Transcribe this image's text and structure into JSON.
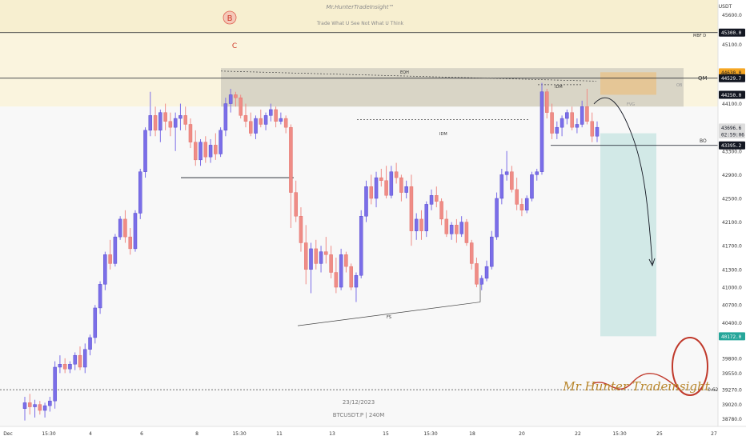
{
  "chart_data": {
    "type": "candlestick",
    "currency": "USDT",
    "watermark_title": "Mr.HunterTradeInsight™",
    "watermark_tagline": "Trade What U See Not What U Think",
    "footer_date": "23/12/2023",
    "footer_symbol": "BTCUSDT.P | 240M",
    "signature": "Mr Hunter Tradeinsight",
    "x_tick_labels": [
      "Dec",
      "15:30",
      "4",
      "6",
      "8",
      "15:30",
      "11",
      "13",
      "15",
      "15:30",
      "18",
      "20",
      "22",
      "15:30",
      "25",
      "27"
    ],
    "y_tick_labels": [
      "45600.0",
      "45100.0",
      "44100.0",
      "43300.0",
      "42900.0",
      "42500.0",
      "42100.0",
      "41700.0",
      "41300.0",
      "41000.0",
      "40700.0",
      "40400.0",
      "39800.0",
      "39550.0",
      "39270.0",
      "39020.0",
      "38780.0"
    ],
    "ylim": [
      38650,
      45850
    ],
    "price_tags": [
      {
        "label": "45300.0",
        "value": 45300,
        "color": "#131722",
        "text_color": "#ffffff"
      },
      {
        "label": "44630.0",
        "value": 44630,
        "color": "#f5a623",
        "text_color": "#131722"
      },
      {
        "label": "44529.7",
        "value": 44529.7,
        "color": "#131722",
        "text_color": "#ffffff"
      },
      {
        "label": "44250.0",
        "value": 44250,
        "color": "#131722",
        "text_color": "#ffffff"
      },
      {
        "label": "43696.6",
        "value": 43696.6,
        "color": "#dddddd",
        "text_color": "#131722"
      },
      {
        "label": "02:59:06",
        "value": 43580,
        "color": "#dddddd",
        "text_color": "#131722"
      },
      {
        "label": "43395.2",
        "value": 43395.2,
        "color": "#131722",
        "text_color": "#ffffff"
      },
      {
        "label": "40172.0",
        "value": 40172,
        "color": "#26a69a",
        "text_color": "#ffffff"
      }
    ],
    "annotations": {
      "wave_b": "B",
      "wave_c": "C",
      "eqh": "EQH",
      "idm_top": "IDM",
      "idm_mid": "IDM",
      "fs": "FS",
      "mbf": "MBF D",
      "qm": "QM",
      "bo": "BO",
      "fib": "0.62",
      "ob": "OB",
      "fvg": "FVG"
    },
    "candles": [
      {
        "o": 38950,
        "h": 39150,
        "l": 38750,
        "c": 39050
      },
      {
        "o": 39050,
        "h": 39200,
        "l": 38850,
        "c": 38980
      },
      {
        "o": 38980,
        "h": 39100,
        "l": 38800,
        "c": 39020
      },
      {
        "o": 39020,
        "h": 39080,
        "l": 38850,
        "c": 38920
      },
      {
        "o": 38920,
        "h": 39050,
        "l": 38800,
        "c": 39000
      },
      {
        "o": 39000,
        "h": 39150,
        "l": 38900,
        "c": 39080
      },
      {
        "o": 39080,
        "h": 39750,
        "l": 38950,
        "c": 39650
      },
      {
        "o": 39650,
        "h": 39850,
        "l": 39550,
        "c": 39700
      },
      {
        "o": 39700,
        "h": 39800,
        "l": 39550,
        "c": 39620
      },
      {
        "o": 39620,
        "h": 39750,
        "l": 39550,
        "c": 39700
      },
      {
        "o": 39700,
        "h": 39900,
        "l": 39600,
        "c": 39850
      },
      {
        "o": 39850,
        "h": 40000,
        "l": 39600,
        "c": 39650
      },
      {
        "o": 39650,
        "h": 40050,
        "l": 39550,
        "c": 39950
      },
      {
        "o": 39950,
        "h": 40200,
        "l": 39850,
        "c": 40150
      },
      {
        "o": 40150,
        "h": 40700,
        "l": 40050,
        "c": 40650
      },
      {
        "o": 40650,
        "h": 41100,
        "l": 40550,
        "c": 41050
      },
      {
        "o": 41050,
        "h": 41600,
        "l": 40950,
        "c": 41550
      },
      {
        "o": 41550,
        "h": 41800,
        "l": 41300,
        "c": 41400
      },
      {
        "o": 41400,
        "h": 41900,
        "l": 41350,
        "c": 41850
      },
      {
        "o": 41850,
        "h": 42200,
        "l": 41800,
        "c": 42150
      },
      {
        "o": 42150,
        "h": 42300,
        "l": 41750,
        "c": 41850
      },
      {
        "o": 41850,
        "h": 42000,
        "l": 41550,
        "c": 41650
      },
      {
        "o": 41650,
        "h": 42300,
        "l": 41600,
        "c": 42250
      },
      {
        "o": 42250,
        "h": 43000,
        "l": 42150,
        "c": 42950
      },
      {
        "o": 42950,
        "h": 43700,
        "l": 42850,
        "c": 43650
      },
      {
        "o": 43650,
        "h": 44300,
        "l": 43550,
        "c": 43900
      },
      {
        "o": 43900,
        "h": 44050,
        "l": 43550,
        "c": 43650
      },
      {
        "o": 43650,
        "h": 44000,
        "l": 43450,
        "c": 43950
      },
      {
        "o": 43950,
        "h": 44100,
        "l": 43650,
        "c": 43800
      },
      {
        "o": 43800,
        "h": 43950,
        "l": 43550,
        "c": 43700
      },
      {
        "o": 43700,
        "h": 43950,
        "l": 43300,
        "c": 43850
      },
      {
        "o": 43850,
        "h": 44100,
        "l": 43650,
        "c": 43900
      },
      {
        "o": 43900,
        "h": 44050,
        "l": 43650,
        "c": 43750
      },
      {
        "o": 43750,
        "h": 43850,
        "l": 43350,
        "c": 43450
      },
      {
        "o": 43450,
        "h": 43650,
        "l": 43050,
        "c": 43150
      },
      {
        "o": 43150,
        "h": 43500,
        "l": 43050,
        "c": 43450
      },
      {
        "o": 43450,
        "h": 43550,
        "l": 43100,
        "c": 43200
      },
      {
        "o": 43200,
        "h": 43500,
        "l": 43100,
        "c": 43400
      },
      {
        "o": 43400,
        "h": 43600,
        "l": 43150,
        "c": 43250
      },
      {
        "o": 43250,
        "h": 43700,
        "l": 43200,
        "c": 43650
      },
      {
        "o": 43650,
        "h": 44200,
        "l": 43550,
        "c": 44100
      },
      {
        "o": 44100,
        "h": 44350,
        "l": 43950,
        "c": 44250
      },
      {
        "o": 44250,
        "h": 44300,
        "l": 44050,
        "c": 44200
      },
      {
        "o": 44200,
        "h": 44250,
        "l": 43850,
        "c": 43900
      },
      {
        "o": 43900,
        "h": 44100,
        "l": 43700,
        "c": 43800
      },
      {
        "o": 43800,
        "h": 43950,
        "l": 43550,
        "c": 43600
      },
      {
        "o": 43600,
        "h": 43900,
        "l": 43500,
        "c": 43850
      },
      {
        "o": 43850,
        "h": 44000,
        "l": 43700,
        "c": 43750
      },
      {
        "o": 43750,
        "h": 43950,
        "l": 43650,
        "c": 43900
      },
      {
        "o": 43900,
        "h": 44100,
        "l": 43800,
        "c": 44000
      },
      {
        "o": 44000,
        "h": 44050,
        "l": 43700,
        "c": 43800
      },
      {
        "o": 43800,
        "h": 43950,
        "l": 43750,
        "c": 43850
      },
      {
        "o": 43850,
        "h": 43900,
        "l": 43600,
        "c": 43700
      },
      {
        "o": 43700,
        "h": 43750,
        "l": 42000,
        "c": 42600
      },
      {
        "o": 42600,
        "h": 42800,
        "l": 42100,
        "c": 42200
      },
      {
        "o": 42200,
        "h": 42350,
        "l": 41600,
        "c": 41750
      },
      {
        "o": 41750,
        "h": 42050,
        "l": 41050,
        "c": 41300
      },
      {
        "o": 41300,
        "h": 41750,
        "l": 40900,
        "c": 41650
      },
      {
        "o": 41650,
        "h": 41800,
        "l": 41300,
        "c": 41400
      },
      {
        "o": 41400,
        "h": 41700,
        "l": 41250,
        "c": 41600
      },
      {
        "o": 41600,
        "h": 41850,
        "l": 41400,
        "c": 41550
      },
      {
        "o": 41550,
        "h": 41700,
        "l": 41150,
        "c": 41250
      },
      {
        "o": 41250,
        "h": 41500,
        "l": 40900,
        "c": 41000
      },
      {
        "o": 41000,
        "h": 41650,
        "l": 40950,
        "c": 41550
      },
      {
        "o": 41550,
        "h": 41600,
        "l": 41250,
        "c": 41350
      },
      {
        "o": 41350,
        "h": 41400,
        "l": 40950,
        "c": 41000
      },
      {
        "o": 41000,
        "h": 41250,
        "l": 40750,
        "c": 41200
      },
      {
        "o": 41200,
        "h": 42300,
        "l": 41150,
        "c": 42200
      },
      {
        "o": 42200,
        "h": 42800,
        "l": 42100,
        "c": 42700
      },
      {
        "o": 42700,
        "h": 42900,
        "l": 42400,
        "c": 42500
      },
      {
        "o": 42500,
        "h": 42950,
        "l": 42350,
        "c": 42850
      },
      {
        "o": 42850,
        "h": 43000,
        "l": 42700,
        "c": 42800
      },
      {
        "o": 42800,
        "h": 43050,
        "l": 42500,
        "c": 42550
      },
      {
        "o": 42550,
        "h": 43050,
        "l": 42500,
        "c": 42950
      },
      {
        "o": 42950,
        "h": 43100,
        "l": 42750,
        "c": 42850
      },
      {
        "o": 42850,
        "h": 42900,
        "l": 42450,
        "c": 42600
      },
      {
        "o": 42600,
        "h": 42800,
        "l": 42500,
        "c": 42700
      },
      {
        "o": 42700,
        "h": 42900,
        "l": 41700,
        "c": 41950
      },
      {
        "o": 41950,
        "h": 42250,
        "l": 41800,
        "c": 42150
      },
      {
        "o": 42150,
        "h": 42300,
        "l": 41800,
        "c": 41950
      },
      {
        "o": 41950,
        "h": 42450,
        "l": 41850,
        "c": 42400
      },
      {
        "o": 42400,
        "h": 42650,
        "l": 42300,
        "c": 42550
      },
      {
        "o": 42550,
        "h": 42700,
        "l": 42350,
        "c": 42450
      },
      {
        "o": 42450,
        "h": 42500,
        "l": 42050,
        "c": 42150
      },
      {
        "o": 42150,
        "h": 42300,
        "l": 41850,
        "c": 41900
      },
      {
        "o": 41900,
        "h": 42100,
        "l": 41800,
        "c": 42050
      },
      {
        "o": 42050,
        "h": 42150,
        "l": 41750,
        "c": 41900
      },
      {
        "o": 41900,
        "h": 42200,
        "l": 41850,
        "c": 42100
      },
      {
        "o": 42100,
        "h": 42150,
        "l": 41700,
        "c": 41750
      },
      {
        "o": 41750,
        "h": 41800,
        "l": 41300,
        "c": 41400
      },
      {
        "o": 41400,
        "h": 41500,
        "l": 41000,
        "c": 41050
      },
      {
        "o": 41050,
        "h": 41200,
        "l": 40950,
        "c": 41150
      },
      {
        "o": 41150,
        "h": 41450,
        "l": 41100,
        "c": 41350
      },
      {
        "o": 41350,
        "h": 41950,
        "l": 41300,
        "c": 41850
      },
      {
        "o": 41850,
        "h": 42600,
        "l": 41800,
        "c": 42500
      },
      {
        "o": 42500,
        "h": 43000,
        "l": 42400,
        "c": 42900
      },
      {
        "o": 42900,
        "h": 43300,
        "l": 42800,
        "c": 42950
      },
      {
        "o": 42950,
        "h": 43050,
        "l": 42600,
        "c": 42650
      },
      {
        "o": 42650,
        "h": 42850,
        "l": 42300,
        "c": 42400
      },
      {
        "o": 42400,
        "h": 42500,
        "l": 42200,
        "c": 42300
      },
      {
        "o": 42300,
        "h": 42550,
        "l": 42250,
        "c": 42500
      },
      {
        "o": 42500,
        "h": 42950,
        "l": 42450,
        "c": 42900
      },
      {
        "o": 42900,
        "h": 43000,
        "l": 42800,
        "c": 42950
      },
      {
        "o": 42950,
        "h": 44450,
        "l": 42900,
        "c": 44300
      },
      {
        "o": 44300,
        "h": 44350,
        "l": 43850,
        "c": 43950
      },
      {
        "o": 43950,
        "h": 44100,
        "l": 43500,
        "c": 43600
      },
      {
        "o": 43600,
        "h": 43800,
        "l": 43500,
        "c": 43700
      },
      {
        "o": 43700,
        "h": 43900,
        "l": 43550,
        "c": 43850
      },
      {
        "o": 43850,
        "h": 44000,
        "l": 43750,
        "c": 43950
      },
      {
        "o": 43950,
        "h": 44050,
        "l": 43650,
        "c": 43700
      },
      {
        "o": 43700,
        "h": 43850,
        "l": 43600,
        "c": 43750
      },
      {
        "o": 43750,
        "h": 44150,
        "l": 43700,
        "c": 44050
      },
      {
        "o": 44050,
        "h": 44350,
        "l": 43750,
        "c": 43800
      },
      {
        "o": 43800,
        "h": 43950,
        "l": 43450,
        "c": 43550
      },
      {
        "o": 43550,
        "h": 43800,
        "l": 43450,
        "c": 43700
      }
    ]
  }
}
